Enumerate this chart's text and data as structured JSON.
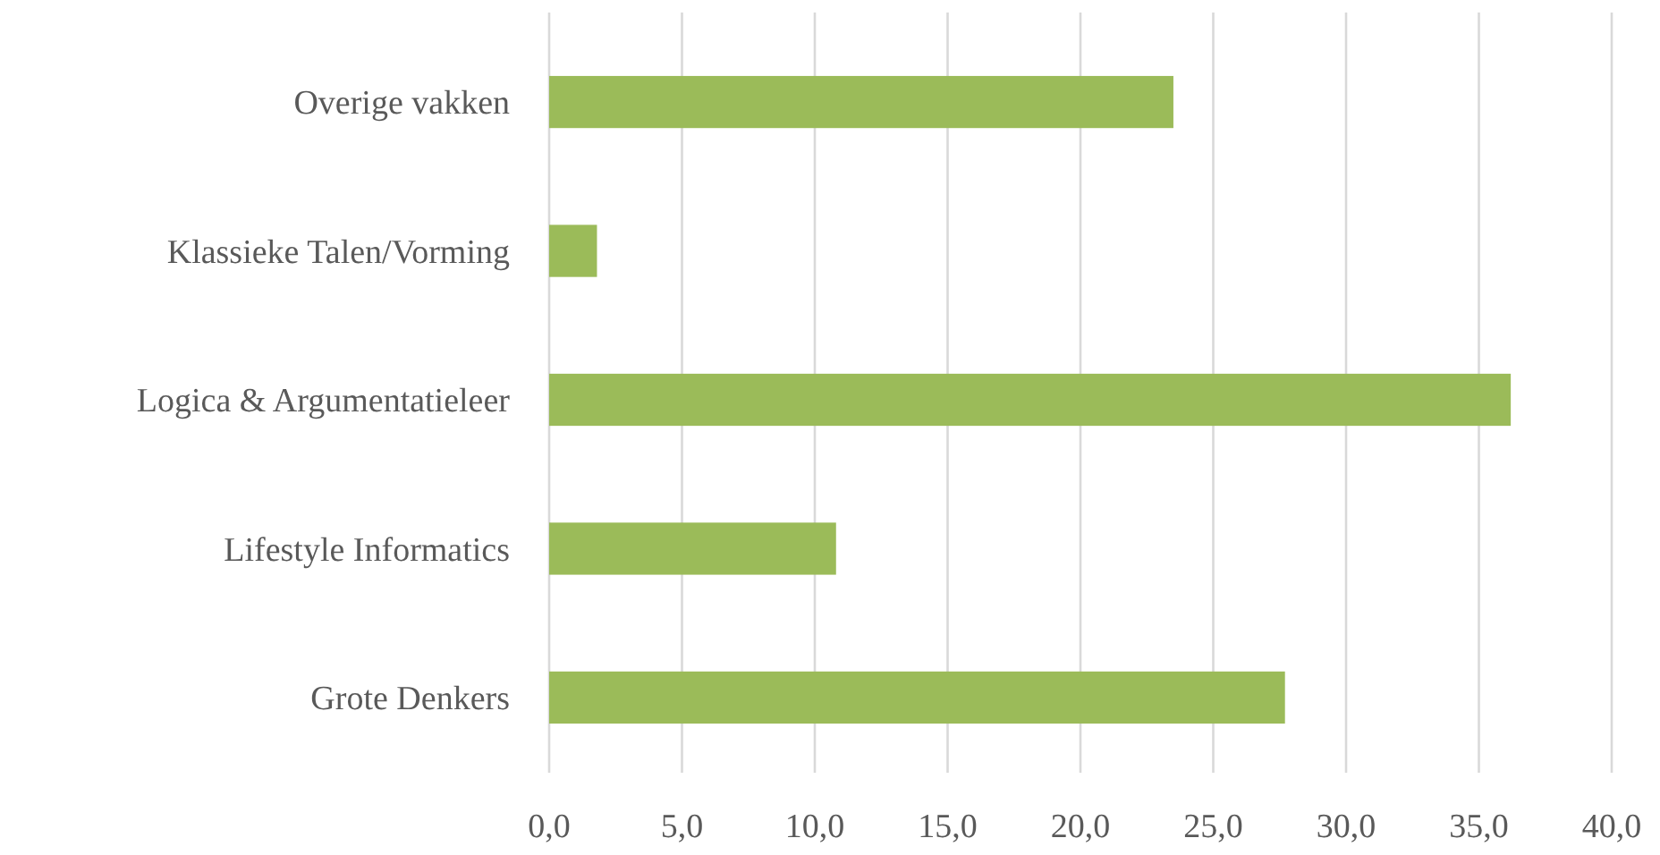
{
  "chart_data": {
    "type": "bar",
    "orientation": "horizontal",
    "categories": [
      "Overige vakken",
      "Klassieke Talen/Vorming",
      "Logica & Argumentatieleer",
      "Lifestyle Informatics",
      "Grote Denkers"
    ],
    "values": [
      23.5,
      1.8,
      36.2,
      10.8,
      27.7
    ],
    "color": "#9bbb59",
    "xlim": [
      0,
      40
    ],
    "xticks": [
      {
        "value": 0,
        "label": "0,0"
      },
      {
        "value": 5,
        "label": "5,0"
      },
      {
        "value": 10,
        "label": "10,0"
      },
      {
        "value": 15,
        "label": "15,0"
      },
      {
        "value": 20,
        "label": "20,0"
      },
      {
        "value": 25,
        "label": "25,0"
      },
      {
        "value": 30,
        "label": "30,0"
      },
      {
        "value": 35,
        "label": "35,0"
      },
      {
        "value": 40,
        "label": "40,0"
      }
    ],
    "grid": "x"
  }
}
